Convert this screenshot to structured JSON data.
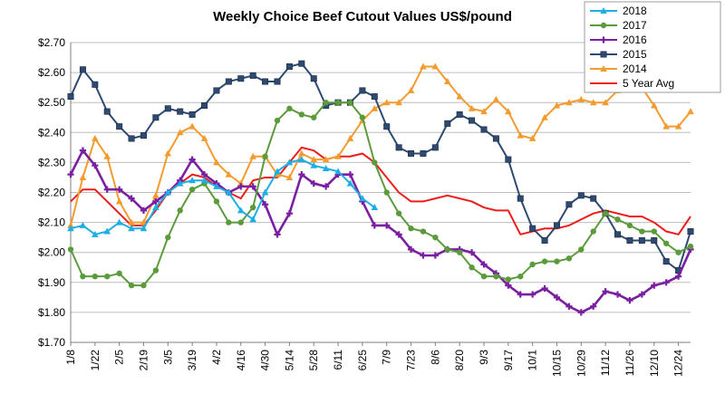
{
  "chart_data": {
    "type": "line",
    "title": "Weekly Choice Beef Cutout Values US$/pound",
    "xlabel": "",
    "ylabel": "",
    "ylim": [
      1.7,
      2.7
    ],
    "y_ticks": [
      "$2.70",
      "$2.60",
      "$2.50",
      "$2.40",
      "$2.30",
      "$2.20",
      "$2.10",
      "$2.00",
      "$1.90",
      "$1.80",
      "$1.70"
    ],
    "x": [
      "1/8",
      "1/15",
      "1/22",
      "1/29",
      "2/5",
      "2/12",
      "2/19",
      "2/26",
      "3/5",
      "3/12",
      "3/19",
      "3/26",
      "4/2",
      "4/9",
      "4/16",
      "4/23",
      "4/30",
      "5/7",
      "5/14",
      "5/21",
      "5/28",
      "6/4",
      "6/11",
      "6/18",
      "6/25",
      "7/2",
      "7/9",
      "7/16",
      "7/23",
      "7/30",
      "8/6",
      "8/13",
      "8/20",
      "8/27",
      "9/3",
      "9/10",
      "9/17",
      "9/24",
      "10/1",
      "10/8",
      "10/15",
      "10/22",
      "10/29",
      "11/5",
      "11/12",
      "11/19",
      "11/26",
      "12/3",
      "12/10",
      "12/17",
      "12/24",
      "12/31"
    ],
    "x_tick_labels": [
      "1/8",
      "1/22",
      "2/5",
      "2/19",
      "3/5",
      "3/19",
      "4/2",
      "4/16",
      "4/30",
      "5/14",
      "5/28",
      "6/11",
      "6/25",
      "7/9",
      "7/23",
      "8/6",
      "8/20",
      "9/3",
      "9/17",
      "10/1",
      "10/15",
      "10/29",
      "11/12",
      "11/26",
      "12/10",
      "12/24"
    ],
    "grid": true,
    "legend_position": "top-right",
    "series": [
      {
        "name": "2018",
        "color": "#1eaee6",
        "marker": "triangle",
        "values": [
          2.08,
          2.09,
          2.06,
          2.07,
          2.1,
          2.08,
          2.08,
          2.15,
          2.2,
          2.23,
          2.24,
          2.24,
          2.22,
          2.2,
          2.14,
          2.11,
          2.2,
          2.27,
          2.3,
          2.31,
          2.29,
          2.28,
          2.27,
          2.23,
          2.18,
          2.15,
          null,
          null,
          null,
          null,
          null,
          null,
          null,
          null,
          null,
          null,
          null,
          null,
          null,
          null,
          null,
          null,
          null,
          null,
          null,
          null,
          null,
          null,
          null,
          null,
          null,
          null
        ]
      },
      {
        "name": "2017",
        "color": "#5b9b3b",
        "marker": "circle",
        "values": [
          2.01,
          1.92,
          1.92,
          1.92,
          1.93,
          1.89,
          1.89,
          1.94,
          2.05,
          2.14,
          2.21,
          2.23,
          2.17,
          2.1,
          2.1,
          2.15,
          2.32,
          2.44,
          2.48,
          2.46,
          2.45,
          2.5,
          2.5,
          2.5,
          2.45,
          2.3,
          2.2,
          2.13,
          2.08,
          2.07,
          2.05,
          2.01,
          2.0,
          1.95,
          1.92,
          1.92,
          1.91,
          1.92,
          1.96,
          1.97,
          1.97,
          1.98,
          2.01,
          2.07,
          2.13,
          2.11,
          2.09,
          2.07,
          2.07,
          2.03,
          2.0,
          2.02
        ]
      },
      {
        "name": "2016",
        "color": "#7b1fa2",
        "marker": "plus",
        "values": [
          2.26,
          2.34,
          2.29,
          2.21,
          2.21,
          2.18,
          2.14,
          2.17,
          2.2,
          2.24,
          2.31,
          2.26,
          2.23,
          2.2,
          2.22,
          2.22,
          2.16,
          2.06,
          2.13,
          2.26,
          2.23,
          2.22,
          2.26,
          2.26,
          2.17,
          2.09,
          2.09,
          2.06,
          2.01,
          1.99,
          1.99,
          2.01,
          2.01,
          2.0,
          1.96,
          1.93,
          1.89,
          1.86,
          1.86,
          1.88,
          1.85,
          1.82,
          1.8,
          1.82,
          1.87,
          1.86,
          1.84,
          1.86,
          1.89,
          1.9,
          1.92,
          2.01
        ]
      },
      {
        "name": "2015",
        "color": "#2e4a70",
        "marker": "square",
        "values": [
          2.52,
          2.61,
          2.56,
          2.47,
          2.42,
          2.38,
          2.39,
          2.45,
          2.48,
          2.47,
          2.46,
          2.49,
          2.54,
          2.57,
          2.58,
          2.59,
          2.57,
          2.57,
          2.62,
          2.63,
          2.58,
          2.49,
          2.5,
          2.5,
          2.54,
          2.52,
          2.42,
          2.35,
          2.33,
          2.33,
          2.35,
          2.43,
          2.46,
          2.44,
          2.41,
          2.38,
          2.31,
          2.18,
          2.08,
          2.04,
          2.09,
          2.16,
          2.19,
          2.18,
          2.13,
          2.06,
          2.04,
          2.04,
          2.04,
          1.97,
          1.94,
          2.07
        ]
      },
      {
        "name": "2014",
        "color": "#f39b2e",
        "marker": "triangle",
        "values": [
          2.09,
          2.25,
          2.38,
          2.32,
          2.17,
          2.1,
          2.1,
          2.19,
          2.33,
          2.4,
          2.42,
          2.38,
          2.3,
          2.26,
          2.23,
          2.32,
          2.32,
          2.26,
          2.25,
          2.33,
          2.31,
          2.31,
          2.32,
          2.38,
          2.44,
          2.48,
          2.5,
          2.5,
          2.54,
          2.62,
          2.62,
          2.57,
          2.52,
          2.48,
          2.47,
          2.51,
          2.47,
          2.39,
          2.38,
          2.45,
          2.49,
          2.5,
          2.51,
          2.5,
          2.5,
          2.54,
          2.56,
          2.55,
          2.49,
          2.42,
          2.42,
          2.47
        ]
      },
      {
        "name": "5 Year Avg",
        "color": "#ee1c1c",
        "marker": "none",
        "values": [
          2.17,
          2.21,
          2.21,
          2.17,
          2.13,
          2.09,
          2.09,
          2.14,
          2.2,
          2.23,
          2.26,
          2.25,
          2.22,
          2.2,
          2.18,
          2.24,
          2.25,
          2.25,
          2.3,
          2.35,
          2.34,
          2.31,
          2.32,
          2.32,
          2.33,
          2.3,
          2.25,
          2.2,
          2.17,
          2.17,
          2.18,
          2.19,
          2.18,
          2.17,
          2.15,
          2.14,
          2.14,
          2.06,
          2.07,
          2.08,
          2.08,
          2.09,
          2.11,
          2.13,
          2.14,
          2.13,
          2.12,
          2.12,
          2.1,
          2.07,
          2.06,
          2.12
        ]
      }
    ]
  }
}
